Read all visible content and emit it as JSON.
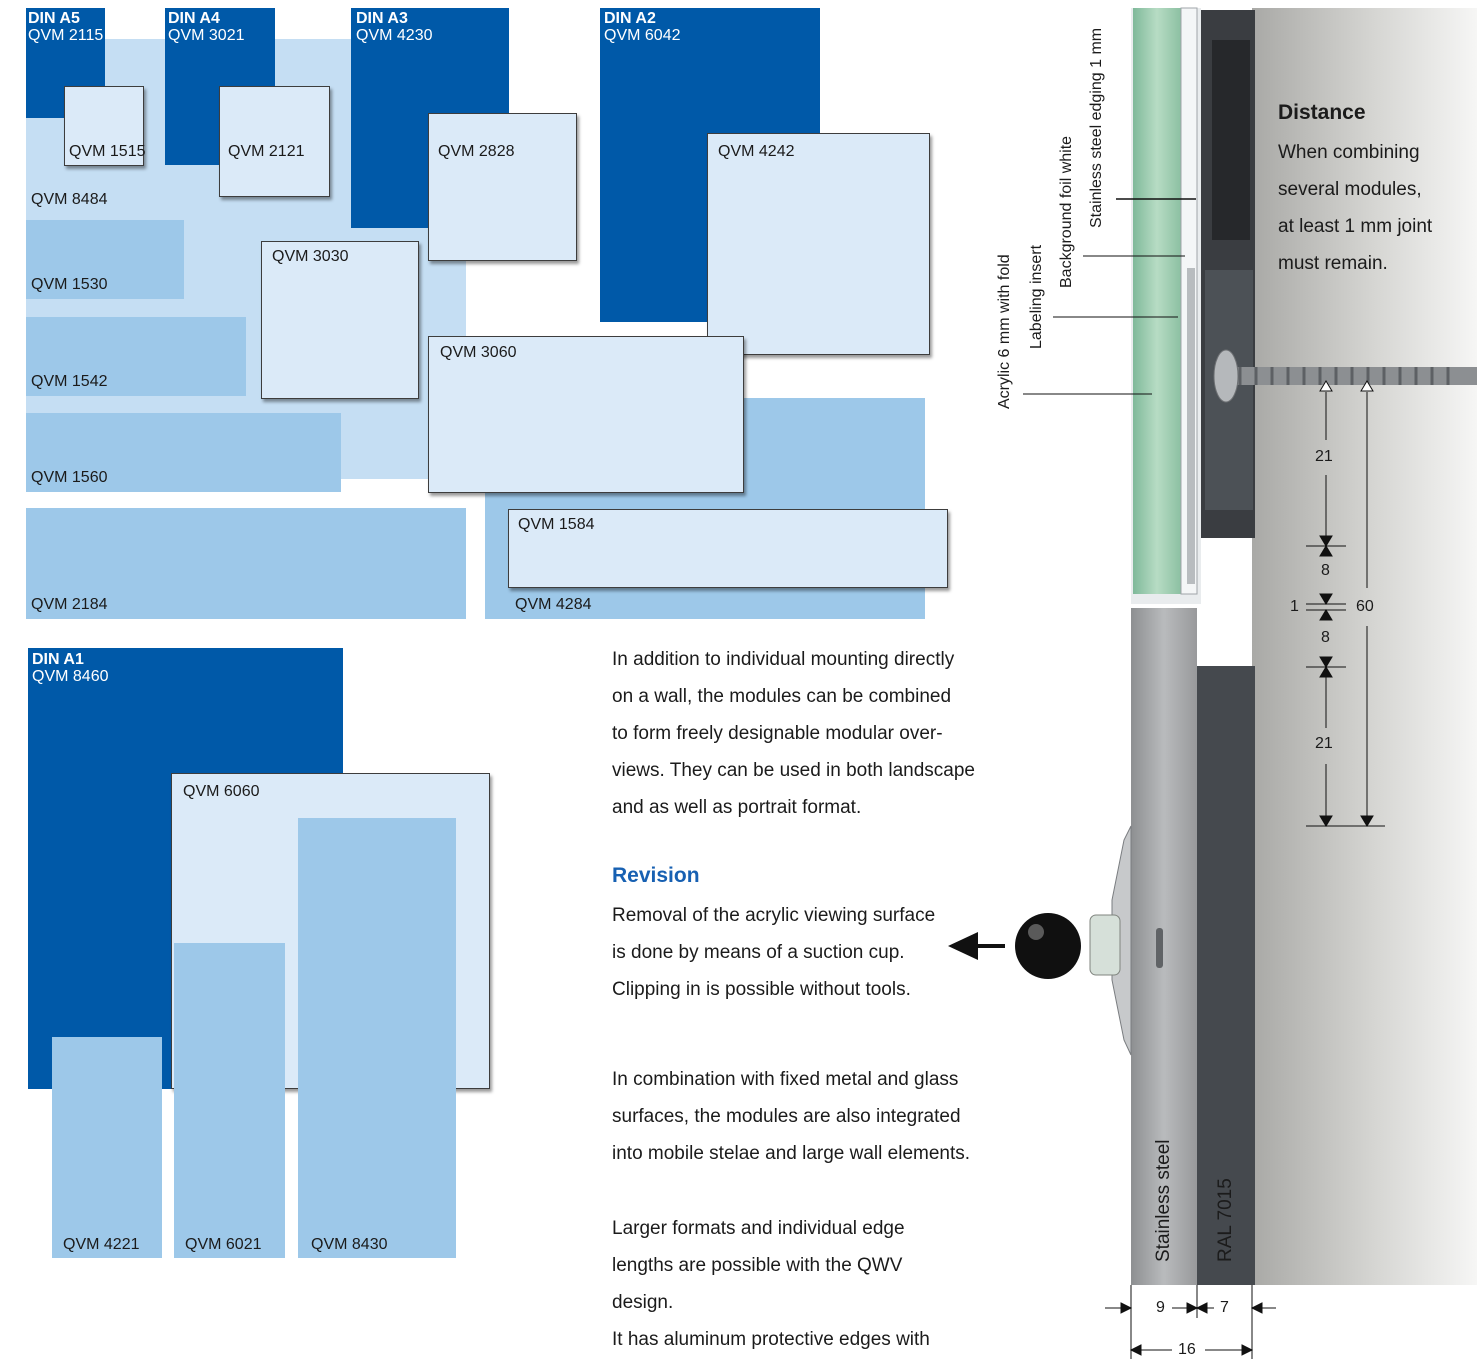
{
  "formats": {
    "din_a5": {
      "title": "DIN A5",
      "code": "QVM 2115"
    },
    "din_a4": {
      "title": "DIN A4",
      "code": "QVM 3021"
    },
    "din_a3": {
      "title": "DIN A3",
      "code": "QVM 4230"
    },
    "din_a2": {
      "title": "DIN A2",
      "code": "QVM 6042"
    },
    "din_a1": {
      "title": "DIN A1",
      "code": "QVM 8460"
    }
  },
  "modules": {
    "qvm1515": "QVM 1515",
    "qvm2121": "QVM 2121",
    "qvm2828": "QVM 2828",
    "qvm4242": "QVM 4242",
    "qvm8484": "QVM 8484",
    "qvm1530": "QVM 1530",
    "qvm3030": "QVM 3030",
    "qvm1542": "QVM 1542",
    "qvm3060": "QVM 3060",
    "qvm1560": "QVM 1560",
    "qvm1584": "QVM 1584",
    "qvm2184": "QVM 2184",
    "qvm4284": "QVM 4284",
    "qvm6060": "QVM 6060",
    "qvm4221": "QVM 4221",
    "qvm6021": "QVM 6021",
    "qvm8430": "QVM 8430"
  },
  "text": {
    "intro": [
      "In addition to individual mounting directly",
      "on a wall, the modules can be combined",
      "to form freely designable modular over-",
      "views. They can be used in both landscape",
      "and as well as portrait format."
    ],
    "revision_title": "Revision",
    "revision": [
      "Removal of the acrylic viewing surface",
      "is done by means of a suction cup.",
      "Clipping in is possible without tools."
    ],
    "combination": [
      "In combination with fixed metal and glass",
      "surfaces, the modules are also integrated",
      "into mobile stelae and large wall elements."
    ],
    "larger": [
      "Larger formats and individual edge",
      "lengths are possible with the QWV",
      "design.",
      "It has aluminum protective edges with"
    ]
  },
  "diagram": {
    "distance_title": "Distance",
    "distance_text": [
      "When combining",
      "several modules,",
      "at least 1 mm joint",
      "must remain."
    ],
    "labels": {
      "edging": "Stainless steel edging 1 mm",
      "foil": "Background foil white",
      "insert": "Labeling insert",
      "acrylic": "Acrylic 6 mm with fold",
      "stainless": "Stainless steel",
      "ral": "RAL 7015"
    },
    "dims": {
      "d21a": "21",
      "d8a": "8",
      "d1": "1",
      "d8b": "8",
      "d21b": "21",
      "d60": "60",
      "d9": "9",
      "d7": "7",
      "d16": "16"
    }
  },
  "colors": {
    "dark_blue": "#0059a8",
    "mid_blue": "#9dc8e9",
    "light_blue": "#c5def3",
    "panel_blue": "#dbeaf8",
    "heading_blue": "#1760b2",
    "wall_grey": "#b8b8b4",
    "ral_grey": "#45494e"
  }
}
